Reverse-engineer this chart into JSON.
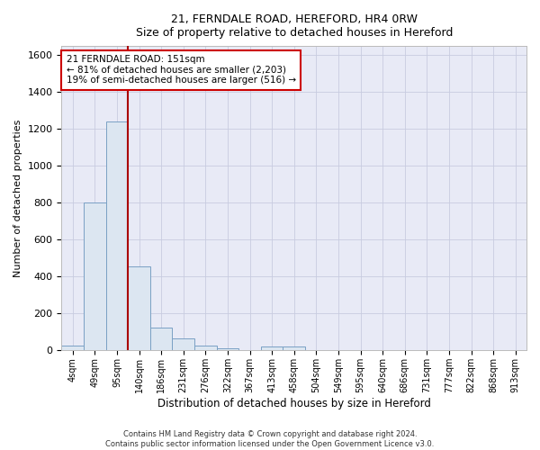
{
  "title_line1": "21, FERNDALE ROAD, HEREFORD, HR4 0RW",
  "title_line2": "Size of property relative to detached houses in Hereford",
  "xlabel": "Distribution of detached houses by size in Hereford",
  "ylabel": "Number of detached properties",
  "footer_line1": "Contains HM Land Registry data © Crown copyright and database right 2024.",
  "footer_line2": "Contains public sector information licensed under the Open Government Licence v3.0.",
  "bar_labels": [
    "4sqm",
    "49sqm",
    "95sqm",
    "140sqm",
    "186sqm",
    "231sqm",
    "276sqm",
    "322sqm",
    "367sqm",
    "413sqm",
    "458sqm",
    "504sqm",
    "549sqm",
    "595sqm",
    "640sqm",
    "686sqm",
    "731sqm",
    "777sqm",
    "822sqm",
    "868sqm",
    "913sqm"
  ],
  "bar_values": [
    25,
    800,
    1240,
    455,
    125,
    65,
    25,
    12,
    0,
    20,
    20,
    0,
    0,
    0,
    0,
    0,
    0,
    0,
    0,
    0,
    0
  ],
  "bar_color": "#dce6f1",
  "bar_edge_color": "#7aa0c4",
  "ylim": [
    0,
    1650
  ],
  "yticks": [
    0,
    200,
    400,
    600,
    800,
    1000,
    1200,
    1400,
    1600
  ],
  "vline_color": "#aa0000",
  "vline_x_index": 2.5,
  "annotation_text_line1": "21 FERNDALE ROAD: 151sqm",
  "annotation_text_line2": "← 81% of detached houses are smaller (2,203)",
  "annotation_text_line3": "19% of semi-detached houses are larger (516) →",
  "annotation_box_color": "#cc0000",
  "grid_color": "#c8cce0",
  "background_color": "#e8eaf6"
}
